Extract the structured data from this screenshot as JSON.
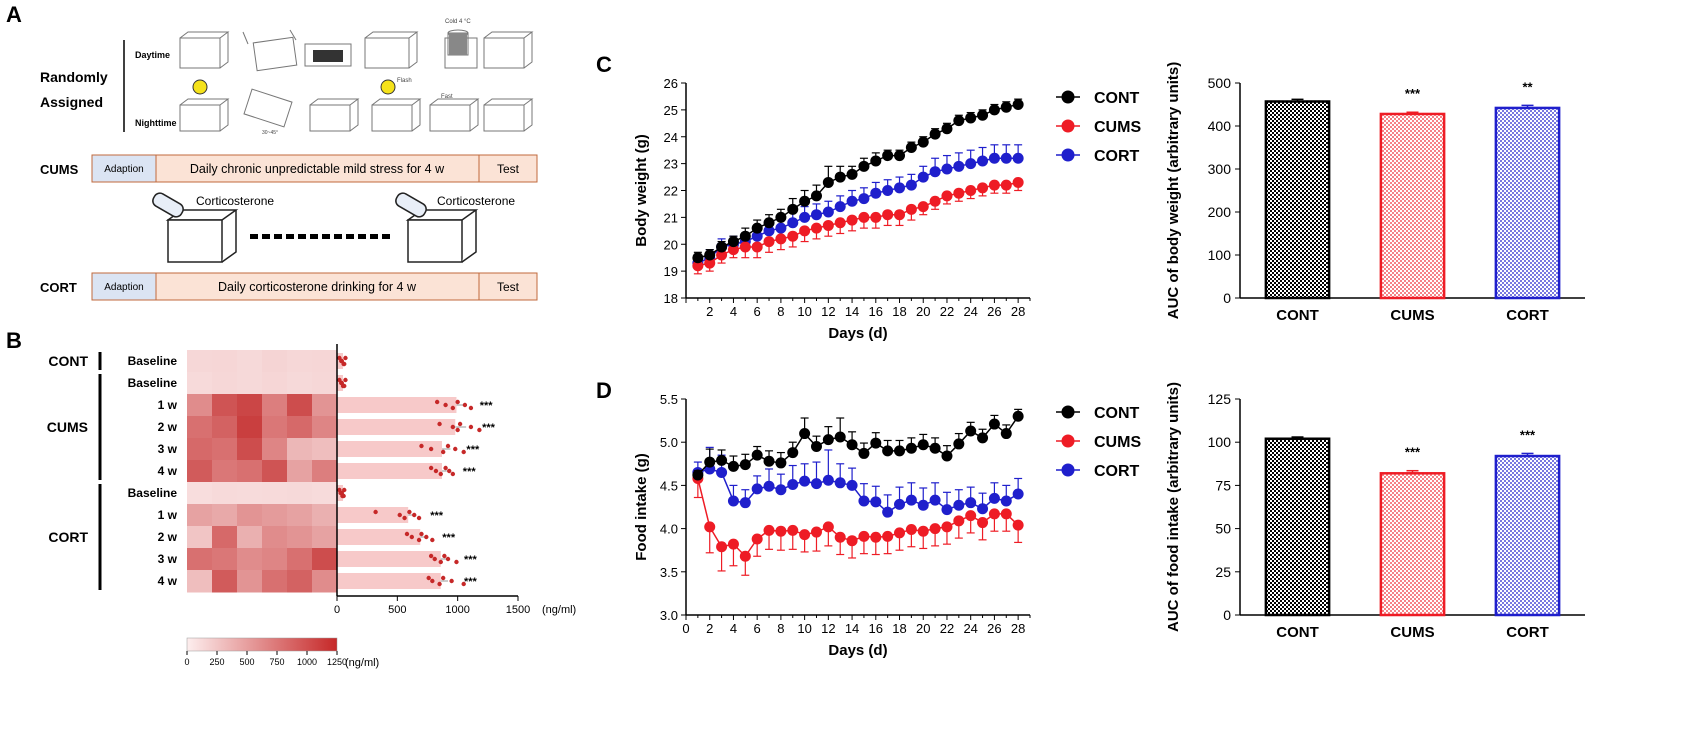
{
  "colors": {
    "cont": "#000000",
    "cums": "#ee1c25",
    "cort": "#1f1fcc",
    "adaption": "#dbe4f3",
    "stress": "#fbe3d6",
    "box_border": "#c06a3c",
    "heat_dark": "#c73a3a",
    "heat_light": "#fbe6e6"
  },
  "panel_letters": {
    "a": "A",
    "b": "B",
    "c": "C",
    "d": "D"
  },
  "panel_a": {
    "randomly": "Randomly",
    "assigned": "Assigned",
    "daytime": "Daytime",
    "nighttime": "Nighttime",
    "cold": "Cold 4 °C",
    "flash": "Flash",
    "fast": "Fast",
    "tilt": "30~45°",
    "cums_label": "CUMS",
    "cort_label": "CORT",
    "adaption": "Adaption",
    "cums_protocol": "Daily chronic unpredictable mild stress for 4 w",
    "cort_protocol": "Daily corticosterone drinking for 4 w",
    "test": "Test",
    "corticosterone": "Corticosterone"
  },
  "chart_data": [
    {
      "id": "B",
      "type": "heatmap",
      "groups": [
        {
          "name": "CONT",
          "rows": [
            "Baseline"
          ]
        },
        {
          "name": "CUMS",
          "rows": [
            "Baseline",
            "1 w",
            "2 w",
            "3 w",
            "4 w"
          ]
        },
        {
          "name": "CORT",
          "rows": [
            "Baseline",
            "1 w",
            "2 w",
            "3 w",
            "4 w"
          ]
        }
      ],
      "row_labels": [
        "Baseline",
        "Baseline",
        "1 w",
        "2 w",
        "3 w",
        "4 w",
        "Baseline",
        "1 w",
        "2 w",
        "3 w",
        "4 w"
      ],
      "cells": [
        [
          120,
          130,
          110,
          140,
          120,
          130
        ],
        [
          100,
          120,
          110,
          130,
          110,
          120
        ],
        [
          650,
          1050,
          1150,
          750,
          1100,
          600
        ],
        [
          850,
          950,
          1200,
          800,
          900,
          700
        ],
        [
          900,
          850,
          1100,
          700,
          350,
          300
        ],
        [
          1000,
          800,
          850,
          1050,
          500,
          750
        ],
        [
          80,
          100,
          90,
          100,
          110,
          90
        ],
        [
          500,
          450,
          600,
          550,
          500,
          400
        ],
        [
          250,
          900,
          400,
          650,
          600,
          500
        ],
        [
          850,
          800,
          650,
          700,
          850,
          1100
        ],
        [
          300,
          1000,
          600,
          850,
          950,
          650
        ]
      ],
      "bar_means": [
        50,
        50,
        990,
        980,
        870,
        870,
        50,
        590,
        690,
        860,
        860
      ],
      "bar_errors": [
        0,
        0,
        60,
        90,
        70,
        40,
        0,
        50,
        50,
        60,
        60
      ],
      "points": [
        [
          20,
          35,
          55,
          70,
          40,
          60
        ],
        [
          20,
          35,
          50,
          70,
          40,
          60
        ],
        [
          830,
          900,
          960,
          1000,
          1060,
          1110
        ],
        [
          850,
          960,
          1000,
          1020,
          1110,
          1180
        ],
        [
          700,
          780,
          880,
          920,
          980,
          1050
        ],
        [
          780,
          820,
          860,
          900,
          930,
          960
        ],
        [
          20,
          30,
          45,
          60,
          40,
          55
        ],
        [
          320,
          520,
          560,
          600,
          640,
          680
        ],
        [
          580,
          620,
          680,
          700,
          740,
          790
        ],
        [
          780,
          810,
          860,
          890,
          920,
          990
        ],
        [
          760,
          790,
          850,
          880,
          950,
          1050
        ]
      ],
      "significance": [
        "",
        "",
        "***",
        "***",
        "***",
        "***",
        "",
        "***",
        "***",
        "***",
        "***"
      ],
      "xaxis": {
        "ticks": [
          0,
          500,
          1000,
          1500
        ],
        "unit": "(ng/ml)",
        "lim": [
          0,
          1500
        ]
      },
      "colorbar": {
        "ticks": [
          0,
          250,
          500,
          750,
          1000,
          1250
        ],
        "unit": "(ng/ml)",
        "lim": [
          0,
          1250
        ]
      }
    },
    {
      "id": "C-line",
      "type": "line",
      "xlabel": "Days (d)",
      "ylabel": "Body weight (g)",
      "x": [
        1,
        2,
        3,
        4,
        5,
        6,
        7,
        8,
        9,
        10,
        11,
        12,
        13,
        14,
        15,
        16,
        17,
        18,
        19,
        20,
        21,
        22,
        23,
        24,
        25,
        26,
        27,
        28
      ],
      "xticks": [
        2,
        4,
        6,
        8,
        10,
        12,
        14,
        16,
        18,
        20,
        22,
        24,
        26,
        28
      ],
      "xlim": [
        0,
        29
      ],
      "ylim": [
        18,
        26
      ],
      "yticks": [
        18,
        19,
        20,
        21,
        22,
        23,
        24,
        25,
        26
      ],
      "series": [
        {
          "name": "CONT",
          "values": [
            19.5,
            19.6,
            19.9,
            20.1,
            20.3,
            20.6,
            20.8,
            21.0,
            21.3,
            21.6,
            21.8,
            22.3,
            22.5,
            22.6,
            22.9,
            23.1,
            23.3,
            23.3,
            23.6,
            23.8,
            24.1,
            24.3,
            24.6,
            24.7,
            24.8,
            25.0,
            25.1,
            25.2
          ],
          "errors": [
            0.2,
            0.2,
            0.2,
            0.2,
            0.3,
            0.3,
            0.3,
            0.3,
            0.4,
            0.4,
            0.4,
            0.6,
            0.4,
            0.3,
            0.3,
            0.3,
            0.2,
            0.2,
            0.2,
            0.2,
            0.2,
            0.2,
            0.2,
            0.2,
            0.2,
            0.2,
            0.2,
            0.2
          ]
        },
        {
          "name": "CUMS",
          "values": [
            19.2,
            19.3,
            19.6,
            19.8,
            19.9,
            19.9,
            20.1,
            20.2,
            20.3,
            20.5,
            20.6,
            20.7,
            20.8,
            20.9,
            21.0,
            21.0,
            21.1,
            21.1,
            21.3,
            21.4,
            21.6,
            21.8,
            21.9,
            22.0,
            22.1,
            22.2,
            22.2,
            22.3
          ],
          "errors": [
            0.3,
            0.3,
            0.3,
            0.3,
            0.4,
            0.4,
            0.4,
            0.4,
            0.4,
            0.4,
            0.4,
            0.4,
            0.4,
            0.4,
            0.4,
            0.4,
            0.4,
            0.4,
            0.4,
            0.3,
            0.3,
            0.3,
            0.3,
            0.3,
            0.3,
            0.3,
            0.3,
            0.3
          ]
        },
        {
          "name": "CORT",
          "values": [
            19.3,
            19.5,
            19.9,
            20.0,
            20.1,
            20.3,
            20.5,
            20.6,
            20.8,
            21.0,
            21.1,
            21.2,
            21.4,
            21.6,
            21.7,
            21.9,
            22.0,
            22.1,
            22.2,
            22.5,
            22.7,
            22.8,
            22.9,
            23.0,
            23.1,
            23.2,
            23.2,
            23.2
          ],
          "errors": [
            0.3,
            0.3,
            0.3,
            0.3,
            0.3,
            0.3,
            0.3,
            0.4,
            0.4,
            0.4,
            0.4,
            0.4,
            0.4,
            0.4,
            0.4,
            0.4,
            0.4,
            0.4,
            0.4,
            0.4,
            0.5,
            0.5,
            0.5,
            0.5,
            0.5,
            0.5,
            0.5,
            0.5
          ]
        }
      ],
      "legend": [
        "CONT",
        "CUMS",
        "CORT"
      ]
    },
    {
      "id": "C-bar",
      "type": "bar",
      "ylabel": "AUC of body weight (arbitrary units)",
      "categories": [
        "CONT",
        "CUMS",
        "CORT"
      ],
      "values": [
        457,
        428,
        442
      ],
      "errors": [
        5,
        4,
        6
      ],
      "significance": [
        "",
        "***",
        "**"
      ],
      "ylim": [
        0,
        500
      ],
      "yticks": [
        0,
        100,
        200,
        300,
        400,
        500
      ]
    },
    {
      "id": "D-line",
      "type": "line",
      "xlabel": "Days (d)",
      "ylabel": "Food intake (g)",
      "x": [
        1,
        2,
        3,
        4,
        5,
        6,
        7,
        8,
        9,
        10,
        11,
        12,
        13,
        14,
        15,
        16,
        17,
        18,
        19,
        20,
        21,
        22,
        23,
        24,
        25,
        26,
        27,
        28
      ],
      "xticks": [
        0,
        2,
        4,
        6,
        8,
        10,
        12,
        14,
        16,
        18,
        20,
        22,
        24,
        26,
        28
      ],
      "xlim": [
        0,
        29
      ],
      "ylim": [
        3.0,
        5.5
      ],
      "yticks": [
        3.0,
        3.5,
        4.0,
        4.5,
        5.0,
        5.5
      ],
      "series": [
        {
          "name": "CONT",
          "values": [
            4.62,
            4.77,
            4.79,
            4.72,
            4.74,
            4.85,
            4.78,
            4.76,
            4.88,
            5.1,
            4.95,
            5.03,
            5.06,
            4.97,
            4.87,
            4.99,
            4.9,
            4.9,
            4.93,
            4.97,
            4.93,
            4.84,
            4.98,
            5.13,
            5.05,
            5.21,
            5.1,
            5.3
          ],
          "errors": [
            0.05,
            0.15,
            0.12,
            0.12,
            0.12,
            0.1,
            0.12,
            0.12,
            0.12,
            0.18,
            0.12,
            0.15,
            0.22,
            0.15,
            0.12,
            0.12,
            0.12,
            0.12,
            0.12,
            0.12,
            0.12,
            0.12,
            0.12,
            0.1,
            0.1,
            0.1,
            0.1,
            0.08
          ]
        },
        {
          "name": "CUMS",
          "values": [
            4.58,
            4.02,
            3.79,
            3.82,
            3.68,
            3.88,
            3.98,
            3.97,
            3.98,
            3.93,
            3.96,
            4.02,
            3.9,
            3.86,
            3.91,
            3.9,
            3.91,
            3.95,
            3.99,
            3.97,
            4.0,
            4.02,
            4.09,
            4.15,
            4.07,
            4.17,
            4.17,
            4.04
          ],
          "errors": [
            0.22,
            0.3,
            0.28,
            0.25,
            0.22,
            0.2,
            0.22,
            0.22,
            0.22,
            0.2,
            0.22,
            0.22,
            0.2,
            0.2,
            0.2,
            0.2,
            0.2,
            0.2,
            0.2,
            0.2,
            0.2,
            0.2,
            0.2,
            0.2,
            0.2,
            0.2,
            0.2,
            0.2
          ]
        },
        {
          "name": "CORT",
          "values": [
            4.65,
            4.69,
            4.65,
            4.32,
            4.3,
            4.46,
            4.49,
            4.45,
            4.51,
            4.55,
            4.52,
            4.56,
            4.53,
            4.5,
            4.32,
            4.31,
            4.19,
            4.28,
            4.33,
            4.27,
            4.33,
            4.22,
            4.27,
            4.3,
            4.23,
            4.35,
            4.32,
            4.4
          ],
          "errors": [
            0.12,
            0.25,
            0.2,
            0.18,
            0.15,
            0.15,
            0.2,
            0.18,
            0.22,
            0.2,
            0.25,
            0.35,
            0.22,
            0.2,
            0.2,
            0.18,
            0.2,
            0.2,
            0.2,
            0.2,
            0.2,
            0.2,
            0.18,
            0.18,
            0.18,
            0.18,
            0.18,
            0.18
          ]
        }
      ],
      "legend": [
        "CONT",
        "CUMS",
        "CORT"
      ]
    },
    {
      "id": "D-bar",
      "type": "bar",
      "ylabel": "AUC of food intake (arbitrary units)",
      "categories": [
        "CONT",
        "CUMS",
        "CORT"
      ],
      "values": [
        102,
        82,
        92
      ],
      "errors": [
        1,
        1.5,
        1.5
      ],
      "significance": [
        "",
        "***",
        "***"
      ],
      "ylim": [
        0,
        125
      ],
      "yticks": [
        0,
        25,
        50,
        75,
        100,
        125
      ]
    }
  ]
}
